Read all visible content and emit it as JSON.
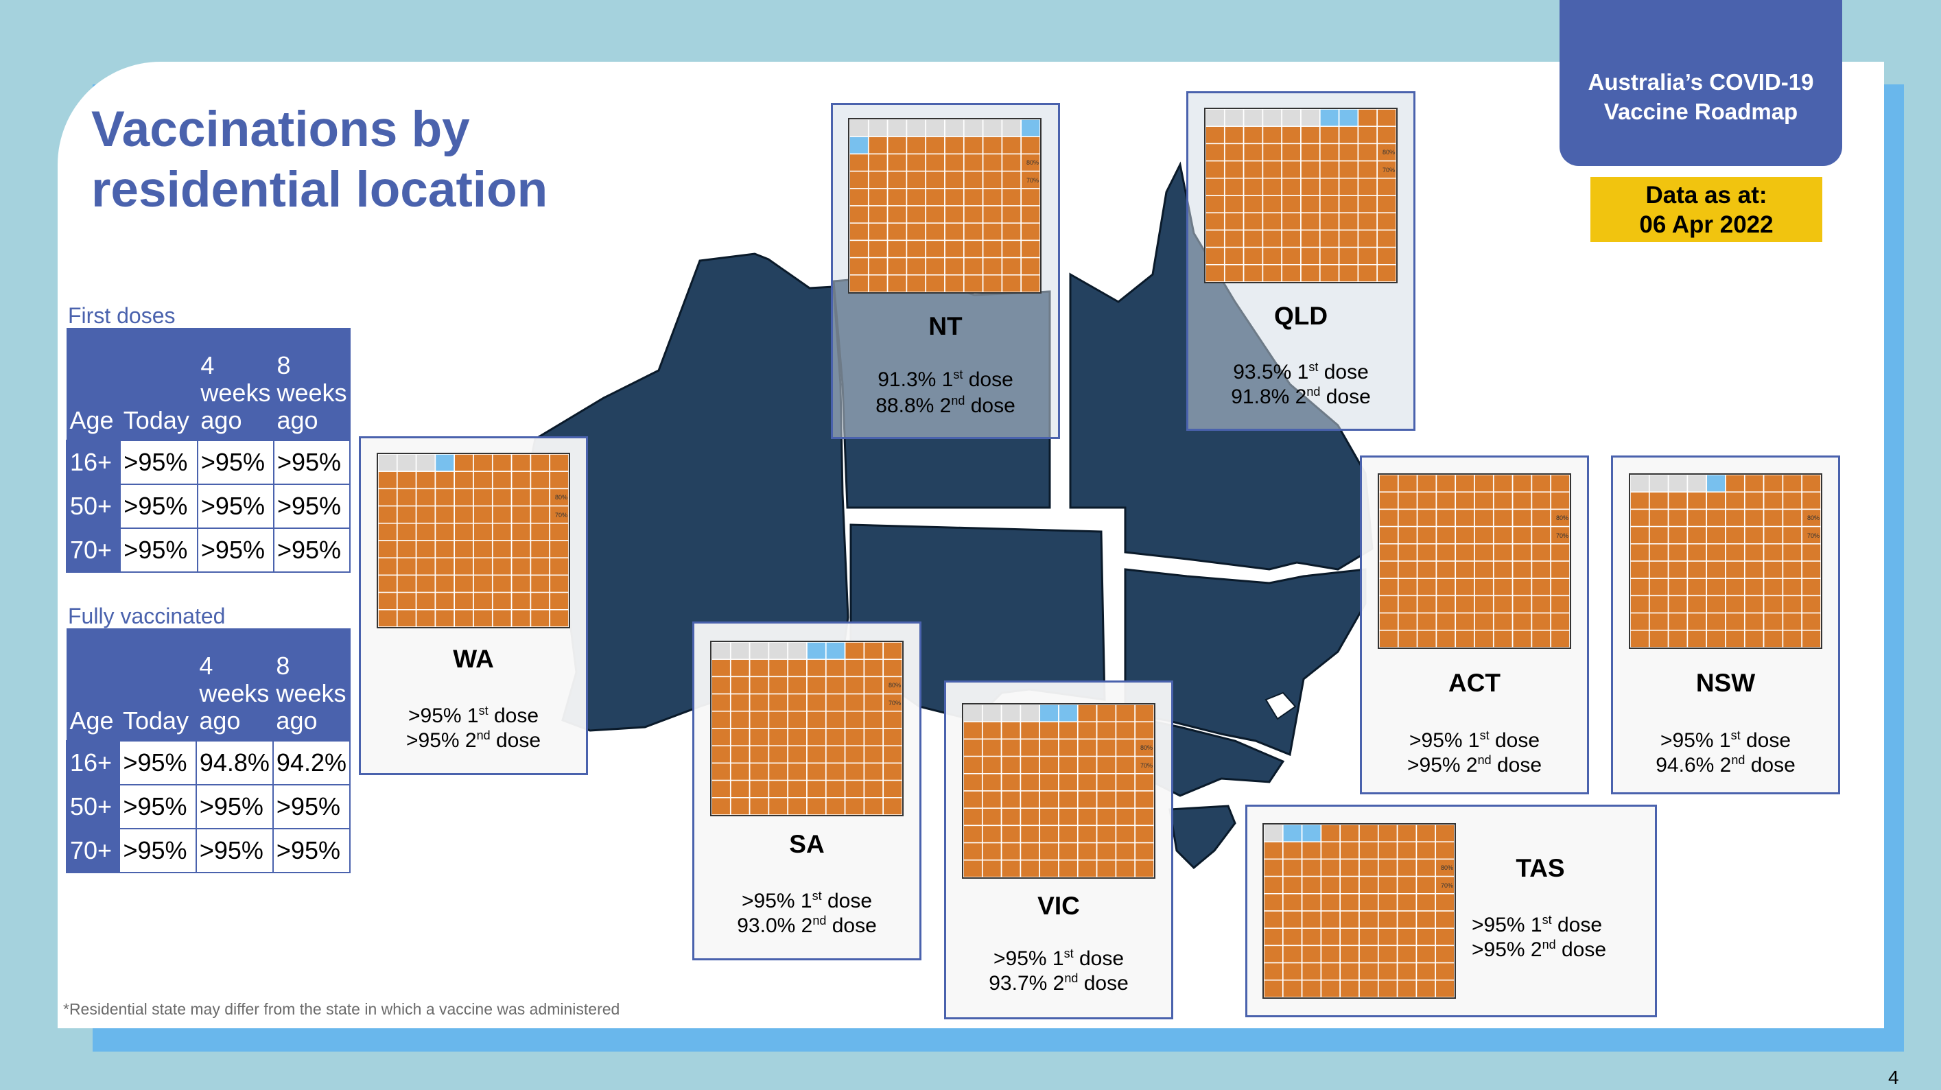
{
  "slide": {
    "title": "Vaccinations by residential location",
    "badge": {
      "line1": "Australia’s COVID-19",
      "line2": "Vaccine Roadmap"
    },
    "data_as_at": {
      "label": "Data as at:",
      "date": "06 Apr 2022"
    },
    "footnote": "*Residential state may differ from the state in which a vaccine was administered",
    "page_number": "4"
  },
  "colors": {
    "brand_blue": "#4a62ad",
    "vaccinated_orange": "#d87b2c",
    "first_dose_blue": "#78c0ee",
    "unvaccinated_grey": "#dcdcdc",
    "map_navy": "#24415f",
    "badge_yellow": "#f1c40f"
  },
  "tables": {
    "first": {
      "caption": "First doses",
      "headers": [
        "Age",
        "Today",
        "4 weeks ago",
        "8 weeks ago"
      ],
      "rows": [
        [
          "16+",
          ">95%",
          ">95%",
          ">95%"
        ],
        [
          "50+",
          ">95%",
          ">95%",
          ">95%"
        ],
        [
          "70+",
          ">95%",
          ">95%",
          ">95%"
        ]
      ]
    },
    "full": {
      "caption": "Fully vaccinated",
      "headers": [
        "Age",
        "Today",
        "4 weeks ago",
        "8 weeks ago"
      ],
      "rows": [
        [
          "16+",
          ">95%",
          "94.8%",
          "94.2%"
        ],
        [
          "50+",
          ">95%",
          ">95%",
          ">95%"
        ],
        [
          "70+",
          ">95%",
          ">95%",
          ">95%"
        ]
      ]
    }
  },
  "waffle_labels": {
    "pct80": "80%",
    "pct70": "70%"
  },
  "states": [
    {
      "name": "NT",
      "first": "91.3%",
      "second": "88.8%",
      "first_frac": 0.913,
      "second_frac": 0.888
    },
    {
      "name": "QLD",
      "first": "93.5%",
      "second": "91.8%",
      "first_frac": 0.935,
      "second_frac": 0.918
    },
    {
      "name": "WA",
      "first": ">95%",
      "second": ">95%",
      "first_frac": 0.97,
      "second_frac": 0.96
    },
    {
      "name": "SA",
      "first": ">95%",
      "second": "93.0%",
      "first_frac": 0.95,
      "second_frac": 0.93
    },
    {
      "name": "VIC",
      "first": ">95%",
      "second": "93.7%",
      "first_frac": 0.955,
      "second_frac": 0.937
    },
    {
      "name": "ACT",
      "first": ">95%",
      "second": ">95%",
      "first_frac": 1.0,
      "second_frac": 1.0
    },
    {
      "name": "NSW",
      "first": ">95%",
      "second": "94.6%",
      "first_frac": 0.96,
      "second_frac": 0.946
    },
    {
      "name": "TAS",
      "first": ">95%",
      "second": ">95%",
      "first_frac": 0.99,
      "second_frac": 0.97
    }
  ],
  "dose_suffix": {
    "first_sup": "st",
    "second_sup": "nd",
    "word": "dose",
    "first_num": "1",
    "second_num": "2"
  }
}
